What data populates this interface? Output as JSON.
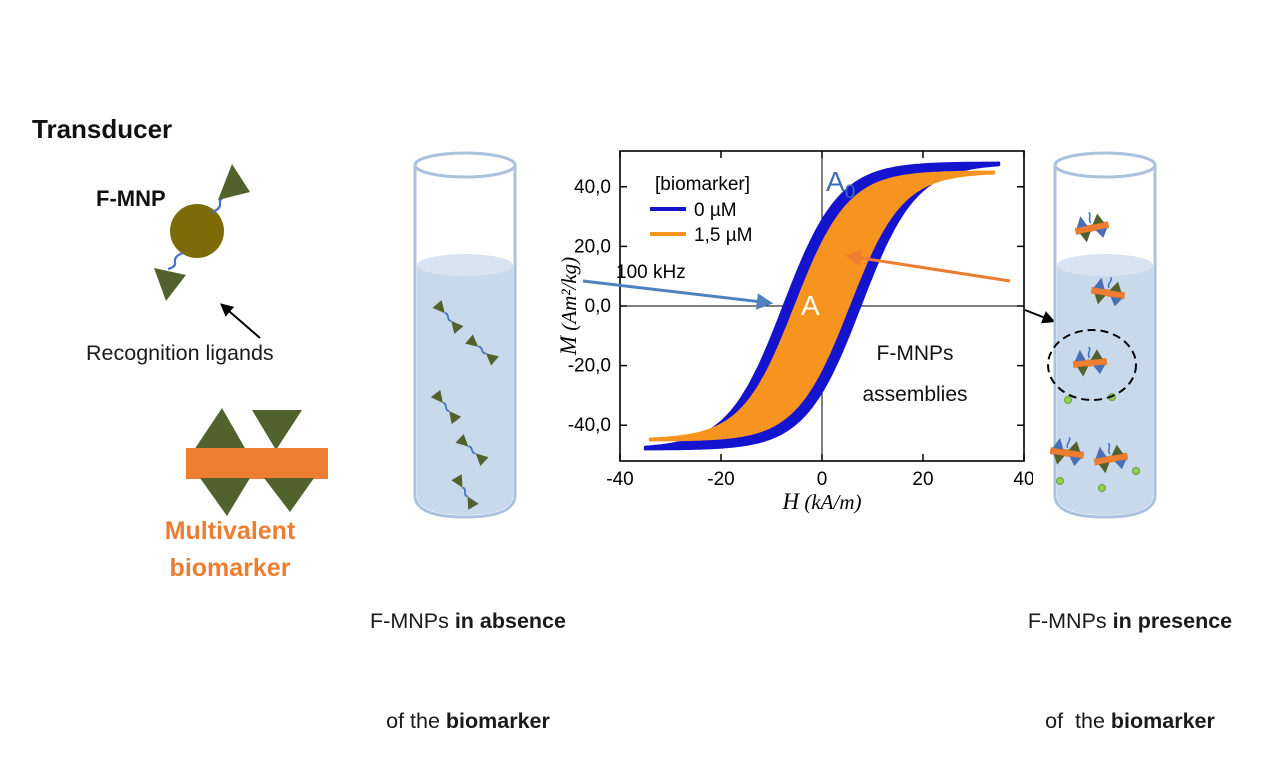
{
  "left_panel": {
    "transducer_title": "Transducer",
    "fmnp_label": "F-MNP",
    "recognition_ligands_label": "Recognition ligands",
    "biomarker_label_line1": "Multivalent",
    "biomarker_label_line2": "biomarker"
  },
  "tube_left_caption": {
    "line1_normal": "F-MNPs ",
    "line1_bold": "in absence",
    "line2_normal": "of the ",
    "line2_bold": "biomarker"
  },
  "tube_right_caption": {
    "line1_normal": "F-MNPs ",
    "line1_bold": "in presence",
    "line2_normal": "of  the ",
    "line2_bold": "biomarker"
  },
  "assemblies_label": {
    "line1": "F-MNPs",
    "line2": "assemblies"
  },
  "chart_data": {
    "type": "line",
    "subtype": "hysteresis-loops",
    "title": "",
    "xlabel": "H (kA/m)",
    "xlabel_var": "H",
    "xlabel_rest": " (kA/m)",
    "ylabel": "M (Am²/kg)",
    "ylabel_var": "M",
    "ylabel_rest": " (Am²/kg)",
    "xlim": [
      -40,
      40
    ],
    "ylim": [
      -52,
      52
    ],
    "grid": false,
    "legend_position": "top-left",
    "legend_title": "[biomarker]",
    "frequency_label": "100 kHz",
    "x_ticks": [
      {
        "value": -40,
        "label": "-40"
      },
      {
        "value": -20,
        "label": "-20"
      },
      {
        "value": 0,
        "label": "0"
      },
      {
        "value": 20,
        "label": "20"
      },
      {
        "value": 40,
        "label": "40"
      }
    ],
    "y_ticks": [
      {
        "value": 40,
        "label": "40,0"
      },
      {
        "value": 20,
        "label": "20,0"
      },
      {
        "value": 0,
        "label": "0,0"
      },
      {
        "value": -20,
        "label": "-20,0"
      },
      {
        "value": -40,
        "label": "-40,0"
      }
    ],
    "series": [
      {
        "name": "0 µM",
        "color": "#1414cf",
        "loop": {
          "Ms": 48,
          "Hc": 7.5,
          "width": 11,
          "H_max": 35
        }
      },
      {
        "name": "1,5 µM",
        "color": "#F79420",
        "loop": {
          "Ms": 45,
          "Hc": 5.2,
          "width": 10.5,
          "H_max": 34
        }
      }
    ],
    "annotations": {
      "outer_area_main": "A",
      "outer_area_sub": "0",
      "inner_area": "A"
    }
  },
  "colors": {
    "olive_triangle": "#51622c",
    "gold_circle": "#7d6b08",
    "orange": "#ED7D31",
    "arrow_blue": "#4f81bd",
    "label_blue": "#3E6DB5",
    "tube_stroke": "#aac2de",
    "liquid_fill": "#c9d9ec",
    "liquid_surface": "#d9e4f2",
    "connector_blue": "#4472c4",
    "green_dot": "#92d050",
    "assembly_blue": "#4a6fb5",
    "black": "#000000",
    "white": "#ffffff"
  }
}
